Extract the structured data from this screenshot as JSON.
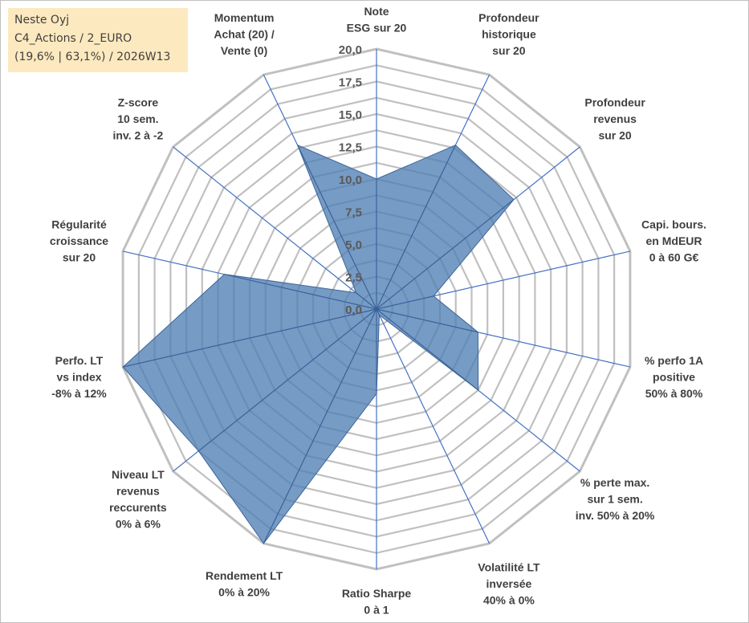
{
  "info": {
    "name": "Neste Oyj",
    "line2": "C4_Actions / 2_EURO",
    "line3": "(19,6% | 63,1%) / 2026W13"
  },
  "colors": {
    "fill": "#4f7fb3",
    "grid": "#c0c0c0",
    "spoke": "#4472c4",
    "box": "#fde9bf"
  },
  "chart_data": {
    "type": "radar",
    "rmax": 20,
    "ticks": [
      "0,0",
      "2,5",
      "5,0",
      "7,5",
      "10,0",
      "12,5",
      "15,0",
      "17,5",
      "20,0"
    ],
    "axes": [
      {
        "label": [
          "Note",
          "ESG sur 20"
        ],
        "value": 10.0
      },
      {
        "label": [
          "Profondeur",
          "historique",
          "sur 20"
        ],
        "value": 14.0
      },
      {
        "label": [
          "Profondeur",
          "revenus",
          "sur 20"
        ],
        "value": 13.5
      },
      {
        "label": [
          "Capi. bours.",
          "en MdEUR",
          "0 à 60 G€"
        ],
        "value": 4.5
      },
      {
        "label": [
          "% perfo 1A",
          "positive",
          "50% à 80%"
        ],
        "value": 8.0
      },
      {
        "label": [
          "% perte max.",
          "sur 1 sem.",
          "inv. 50% à 20%"
        ],
        "value": 10.0
      },
      {
        "label": [
          "Volatilité LT",
          "inversée",
          "40% à 0%"
        ],
        "value": 0.5
      },
      {
        "label": [
          "Ratio Sharpe",
          "0 à 1"
        ],
        "value": 6.5
      },
      {
        "label": [
          "Rendement LT",
          "0% à 20%"
        ],
        "value": 20.0
      },
      {
        "label": [
          "Niveau LT",
          "revenus",
          "reccurents",
          "0% à 6%"
        ],
        "value": 17.5
      },
      {
        "label": [
          "Perfo. LT",
          "vs index",
          "-8% à 12%"
        ],
        "value": 20.0
      },
      {
        "label": [
          "Régularité",
          "croissance",
          "sur 20"
        ],
        "value": 12.0
      },
      {
        "label": [
          "Z-score",
          "10 sem.",
          "inv. 2 à -2"
        ],
        "value": 2.0
      },
      {
        "label": [
          "Momentum",
          "Achat (20) /",
          "Vente (0)"
        ],
        "value": 14.0
      }
    ]
  }
}
